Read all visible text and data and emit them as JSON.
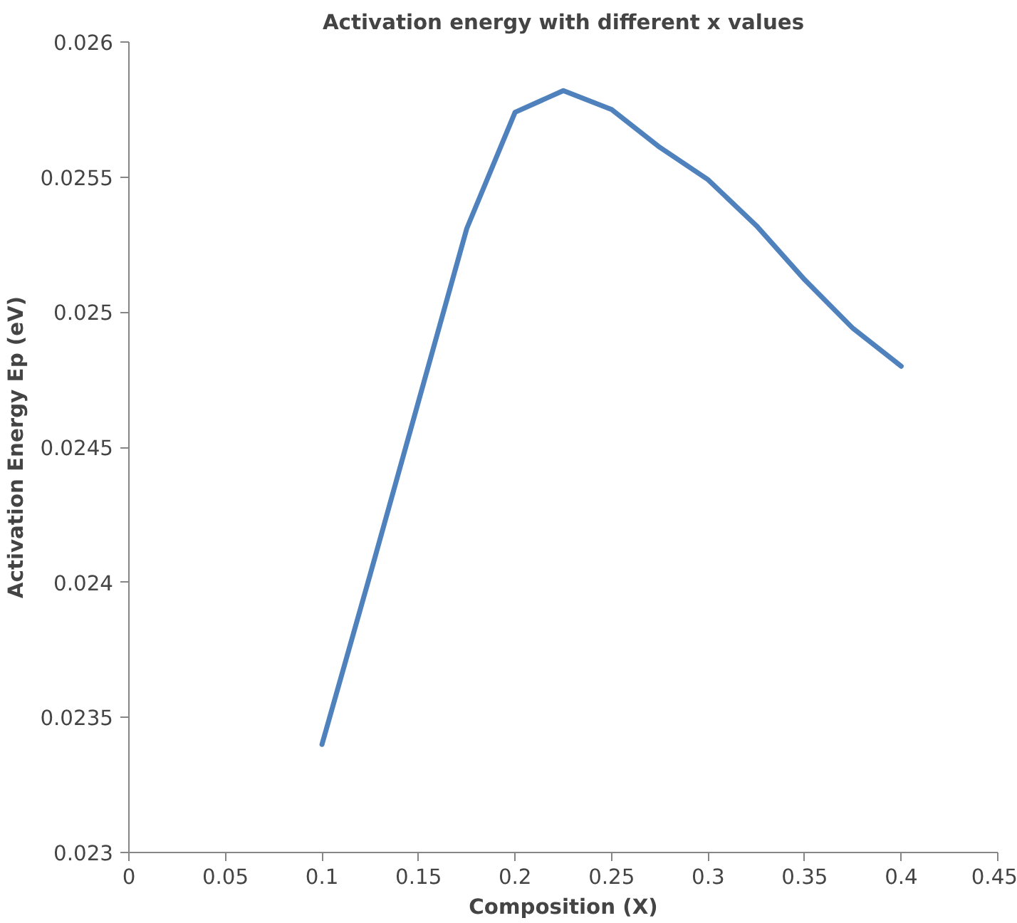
{
  "chart_data": {
    "type": "line",
    "title": "Activation energy with different x values",
    "xlabel": "Composition (X)",
    "ylabel": "Activation Energy Ep (eV)",
    "x": [
      0.1,
      0.125,
      0.15,
      0.175,
      0.2,
      0.225,
      0.25,
      0.275,
      0.3,
      0.325,
      0.35,
      0.375,
      0.4
    ],
    "series": [
      {
        "color": "#4f81bd",
        "values": [
          0.0234,
          0.02403,
          0.02467,
          0.02531,
          0.02574,
          0.02582,
          0.02575,
          0.02561,
          0.02549,
          0.02532,
          0.02512,
          0.02494,
          0.0248
        ]
      }
    ],
    "xlim": [
      0,
      0.45
    ],
    "ylim": [
      0.023,
      0.026
    ],
    "xticks": [
      0,
      0.05,
      0.1,
      0.15,
      0.2,
      0.25,
      0.3,
      0.35,
      0.4,
      0.45
    ],
    "yticks": [
      0.023,
      0.0235,
      0.024,
      0.0245,
      0.025,
      0.0255,
      0.026
    ],
    "grid": false,
    "marker": "none",
    "line_style": "solid"
  }
}
